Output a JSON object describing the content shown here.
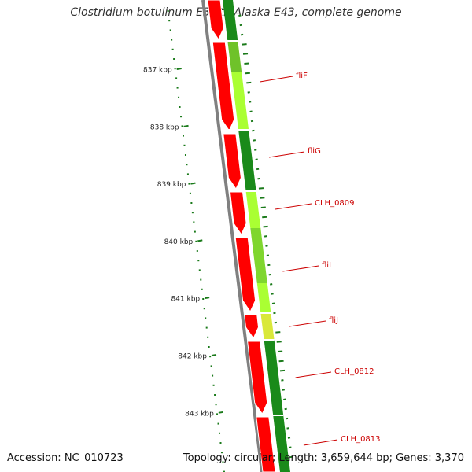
{
  "title": "Clostridium botulinum E3 str. Alaska E43, complete genome",
  "accession": "Accession: NC_010723",
  "stats": "Topology: circular; Length: 3,659,644 bp; Genes: 3,370",
  "kbp_marks": [
    "837 kbp",
    "838 kbp",
    "839 kbp",
    "840 kbp",
    "841 kbp",
    "842 kbp",
    "843 kbp"
  ],
  "gene_labels": [
    "fliF",
    "fliG",
    "CLH_0809",
    "fliI",
    "fliJ",
    "CLH_0812",
    "CLH_0813"
  ],
  "colors": {
    "cds": "#ff0000",
    "gc_high": "#1a8a1a",
    "gc_low": "#aaff33",
    "backbone": "#808080",
    "tick": "#1a7a1a",
    "label": "#cc0000"
  }
}
